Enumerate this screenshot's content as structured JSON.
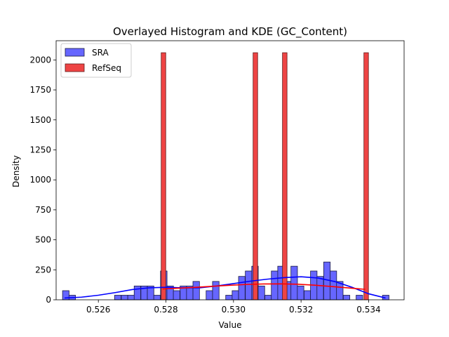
{
  "chart_data": {
    "type": "bar",
    "title": "Overlayed Histogram and KDE (GC_Content)",
    "xlabel": "Value",
    "ylabel": "Density",
    "xlim": [
      0.52475,
      0.53505
    ],
    "ylim": [
      0,
      2160
    ],
    "xticks": [
      0.526,
      0.528,
      0.53,
      0.532,
      0.534
    ],
    "xtick_labels": [
      "0.526",
      "0.528",
      "0.530",
      "0.532",
      "0.534"
    ],
    "yticks": [
      0,
      250,
      500,
      750,
      1000,
      1250,
      1500,
      1750,
      2000
    ],
    "ytick_labels": [
      "0",
      "250",
      "500",
      "750",
      "1000",
      "1250",
      "1500",
      "1750",
      "2000"
    ],
    "legend": {
      "placement": "top-left",
      "entries": [
        "SRA",
        "RefSeq"
      ]
    },
    "grid": false,
    "series": [
      {
        "name": "SRA",
        "kind": "histogram",
        "color": "#6666ff",
        "edge": "#1a1a40",
        "bin_width": 0.000193,
        "bins": [
          {
            "x": 0.52494,
            "h": 76
          },
          {
            "x": 0.52513,
            "h": 38
          },
          {
            "x": 0.52648,
            "h": 38
          },
          {
            "x": 0.52668,
            "h": 38
          },
          {
            "x": 0.52687,
            "h": 38
          },
          {
            "x": 0.52706,
            "h": 115
          },
          {
            "x": 0.52726,
            "h": 115
          },
          {
            "x": 0.52745,
            "h": 115
          },
          {
            "x": 0.52764,
            "h": 38
          },
          {
            "x": 0.52784,
            "h": 240
          },
          {
            "x": 0.52803,
            "h": 115
          },
          {
            "x": 0.52822,
            "h": 76
          },
          {
            "x": 0.52842,
            "h": 115
          },
          {
            "x": 0.52861,
            "h": 115
          },
          {
            "x": 0.5288,
            "h": 153
          },
          {
            "x": 0.52919,
            "h": 76
          },
          {
            "x": 0.52938,
            "h": 153
          },
          {
            "x": 0.52977,
            "h": 38
          },
          {
            "x": 0.52996,
            "h": 76
          },
          {
            "x": 0.53015,
            "h": 195
          },
          {
            "x": 0.53035,
            "h": 240
          },
          {
            "x": 0.53054,
            "h": 280
          },
          {
            "x": 0.53073,
            "h": 115
          },
          {
            "x": 0.53093,
            "h": 38
          },
          {
            "x": 0.53112,
            "h": 240
          },
          {
            "x": 0.53131,
            "h": 280
          },
          {
            "x": 0.53151,
            "h": 153
          },
          {
            "x": 0.5317,
            "h": 280
          },
          {
            "x": 0.53189,
            "h": 115
          },
          {
            "x": 0.53209,
            "h": 76
          },
          {
            "x": 0.53228,
            "h": 240
          },
          {
            "x": 0.53247,
            "h": 195
          },
          {
            "x": 0.53267,
            "h": 315
          },
          {
            "x": 0.53286,
            "h": 240
          },
          {
            "x": 0.53305,
            "h": 153
          },
          {
            "x": 0.53325,
            "h": 38
          },
          {
            "x": 0.53363,
            "h": 38
          },
          {
            "x": 0.53441,
            "h": 38
          }
        ],
        "kde": {
          "color": "#0000ff",
          "x": [
            0.525,
            0.5255,
            0.526,
            0.5265,
            0.527,
            0.5275,
            0.528,
            0.5285,
            0.529,
            0.5295,
            0.53,
            0.5305,
            0.531,
            0.5315,
            0.532,
            0.5325,
            0.533,
            0.5335,
            0.534,
            0.5345
          ],
          "y": [
            15,
            22,
            38,
            60,
            85,
            100,
            104,
            100,
            100,
            115,
            135,
            155,
            172,
            185,
            192,
            182,
            152,
            105,
            50,
            15
          ]
        }
      },
      {
        "name": "RefSeq",
        "kind": "histogram",
        "color": "#ee4444",
        "edge": "#601a1a",
        "bin_width": 0.000135,
        "bins": [
          {
            "x": 0.52786,
            "h": 2060
          },
          {
            "x": 0.53058,
            "h": 2060
          },
          {
            "x": 0.53145,
            "h": 2060
          },
          {
            "x": 0.53386,
            "h": 2060
          }
        ],
        "kde": {
          "color": "#ff0000",
          "x": [
            0.5279,
            0.5284,
            0.5289,
            0.5294,
            0.5299,
            0.5304,
            0.5309,
            0.5314,
            0.5319,
            0.5324,
            0.5329,
            0.5334,
            0.5339
          ],
          "y": [
            90,
            97,
            104,
            113,
            121,
            128,
            132,
            133,
            130,
            122,
            111,
            99,
            87
          ]
        }
      }
    ]
  }
}
